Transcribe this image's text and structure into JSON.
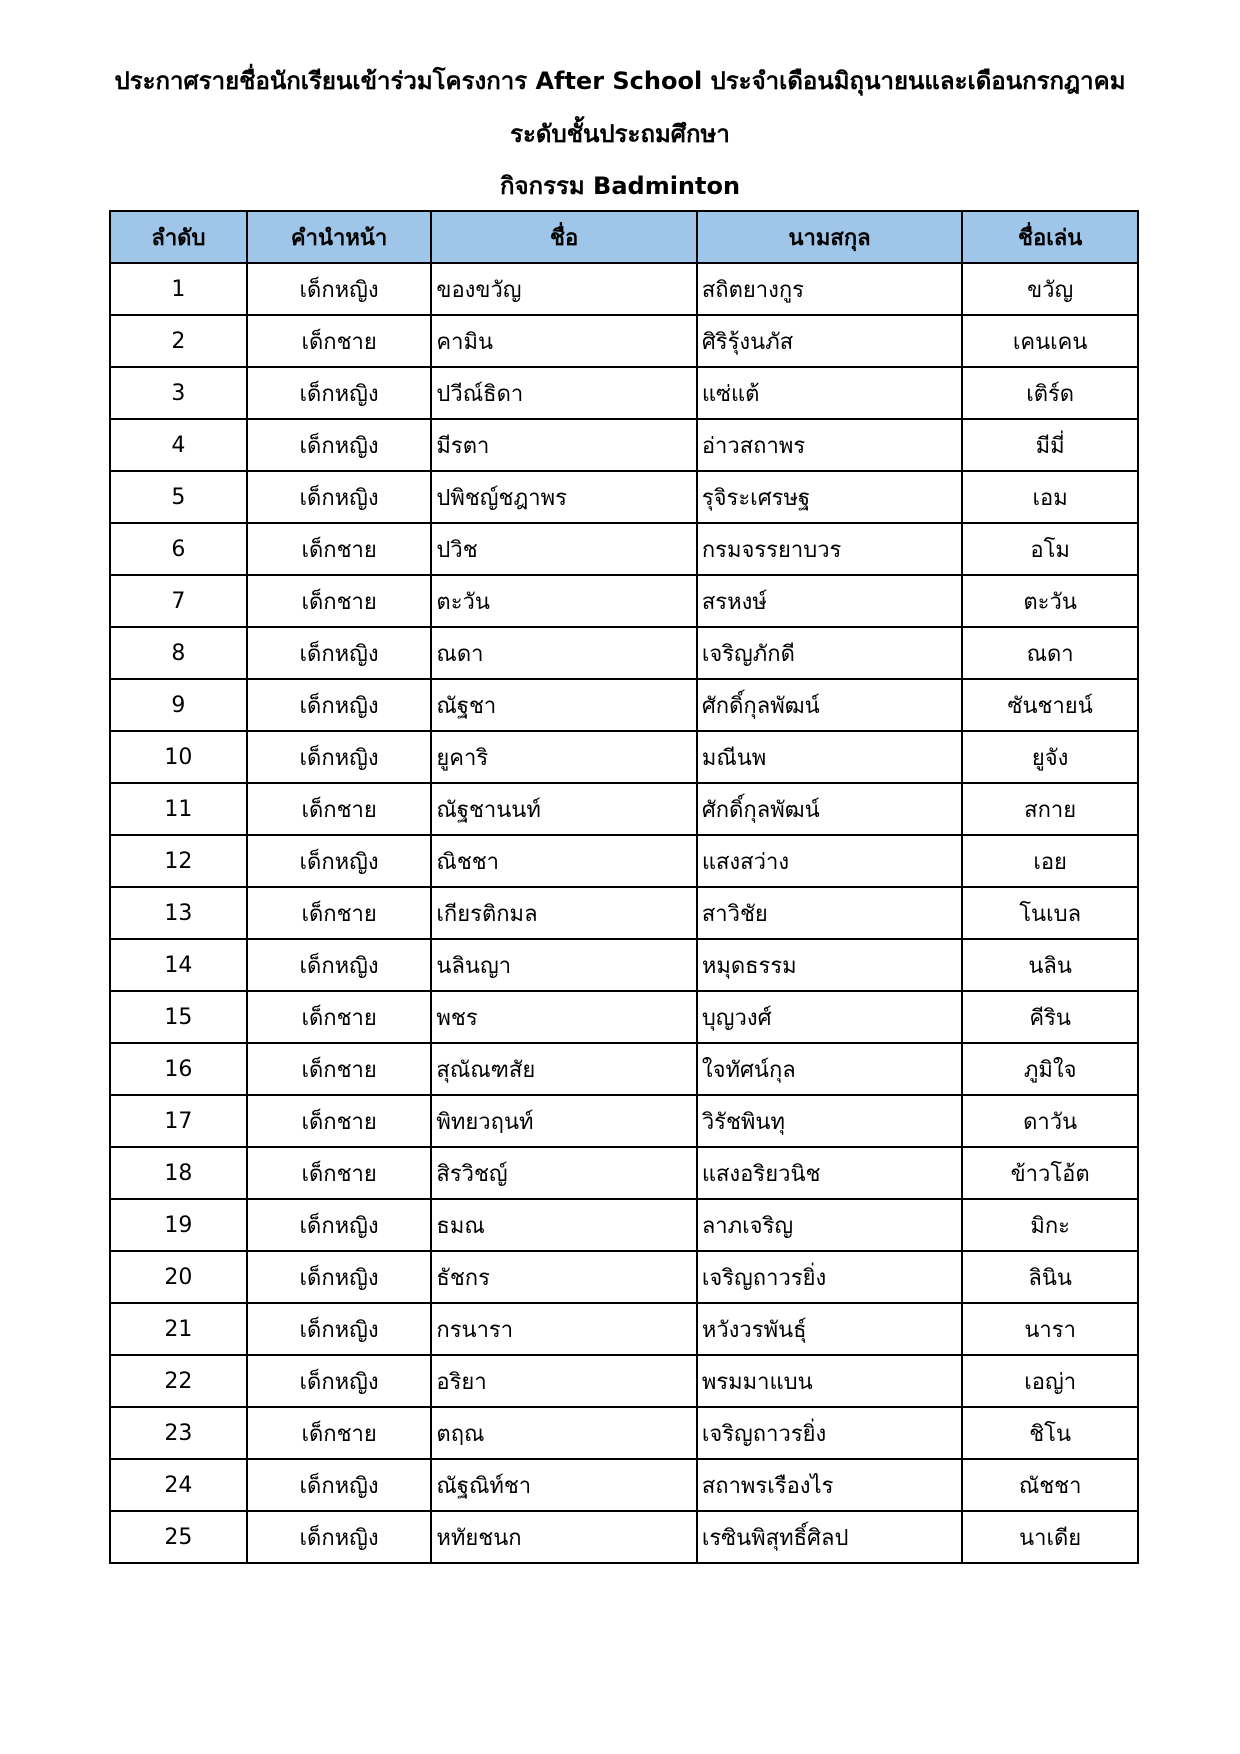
{
  "title": {
    "line1": "ประกาศรายชื่อนักเรียนเข้าร่วมโครงการ After School ประจำเดือนมิถุนายนและเดือนกรกฎาคม",
    "line2": "ระดับชั้นประถมศึกษา",
    "line3": "กิจกรรม Badminton"
  },
  "colors": {
    "header_bg": "#9fc5e8"
  },
  "table": {
    "headers": [
      "ลำดับ",
      "คำนำหน้า",
      "ชื่อ",
      "นามสกุล",
      "ชื่อเล่น"
    ],
    "rows": [
      [
        "1",
        "เด็กหญิง",
        "ของขวัญ",
        "สถิตยางกูร",
        "ขวัญ"
      ],
      [
        "2",
        "เด็กชาย",
        "คามิน",
        "ศิริรุ้งนภัส",
        "เคนเคน"
      ],
      [
        "3",
        "เด็กหญิง",
        "ปวีณ์ธิดา",
        "แซ่แต้",
        "เติร์ด"
      ],
      [
        "4",
        "เด็กหญิง",
        "มีรตา",
        "อ่าวสถาพร",
        "มีมี่"
      ],
      [
        "5",
        "เด็กหญิง",
        "ปพิชญ์ชฎาพร",
        "รุจิระเศรษฐ",
        "เอม"
      ],
      [
        "6",
        "เด็กชาย",
        "ปวิช",
        "กรมจรรยาบวร",
        "อโม"
      ],
      [
        "7",
        "เด็กชาย",
        "ตะวัน",
        "สรหงษ์",
        "ตะวัน"
      ],
      [
        "8",
        "เด็กหญิง",
        "ณดา",
        "เจริญภักดี",
        "ณดา"
      ],
      [
        "9",
        "เด็กหญิง",
        "ณัฐชา",
        "ศักดิ์กุลพัฒน์",
        "ซันชายน์"
      ],
      [
        "10",
        "เด็กหญิง",
        "ยูคาริ",
        "มณีนพ",
        "ยูจัง"
      ],
      [
        "11",
        "เด็กชาย",
        "ณัฐชานนท์",
        "ศักดิ์กุลพัฒน์",
        "สกาย"
      ],
      [
        "12",
        "เด็กหญิง",
        "ณิชชา",
        "แสงสว่าง",
        "เอย"
      ],
      [
        "13",
        "เด็กชาย",
        "เกียรติกมล",
        "สาวิชัย",
        "โนเบล"
      ],
      [
        "14",
        "เด็กหญิง",
        "นลินญา",
        "หมุดธรรม",
        "นลิน"
      ],
      [
        "15",
        "เด็กชาย",
        "พชร",
        "บุญวงศ์",
        "คีริน"
      ],
      [
        "16",
        "เด็กชาย",
        "สุณัณฑสัย",
        "ใจทัศน์กุล",
        "ภูมิใจ"
      ],
      [
        "17",
        "เด็กชาย",
        "พิทยวฤนท์",
        "วิรัชพินทุ",
        "ดาวัน"
      ],
      [
        "18",
        "เด็กชาย",
        "สิรวิชญ์",
        "แสงอริยวนิช",
        "ข้าวโอ้ต"
      ],
      [
        "19",
        "เด็กหญิง",
        "ธมณ",
        "ลาภเจริญ",
        "มิกะ"
      ],
      [
        "20",
        "เด็กหญิง",
        "ธัชกร",
        "เจริญถาวรยิ่ง",
        "ลินิน"
      ],
      [
        "21",
        "เด็กหญิง",
        "กรนารา",
        "หวังวรพันธุ์",
        "นารา"
      ],
      [
        "22",
        "เด็กหญิง",
        "อริยา",
        "พรมมาแบน",
        "เอญ่า"
      ],
      [
        "23",
        "เด็กชาย",
        "ตฤณ",
        "เจริญถาวรยิ่ง",
        "ชิโน"
      ],
      [
        "24",
        "เด็กหญิง",
        "ณัฐณิท์ชา",
        "สถาพรเรืองไร",
        "ณัชชา"
      ],
      [
        "25",
        "เด็กหญิง",
        "หทัยชนก",
        "เรซินพิสุทธิ์ศิลป",
        "นาเดีย"
      ]
    ]
  }
}
